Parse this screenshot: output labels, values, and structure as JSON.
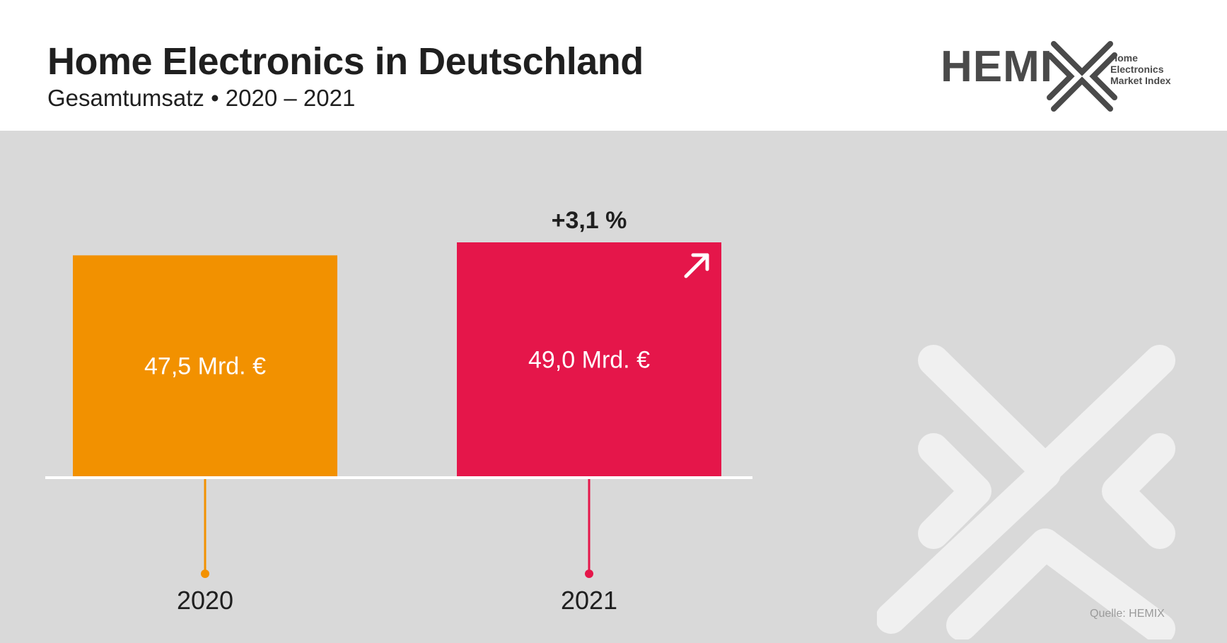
{
  "header": {
    "title": "Home Electronics in Deutschland",
    "subtitle": "Gesamtumsatz • 2020 – 2021"
  },
  "logo": {
    "wordmark": "HEMIX",
    "line1": "Home",
    "line2": "Electronics",
    "line3": "Market Index"
  },
  "colors": {
    "bar_2020": "#f29100",
    "bar_2021": "#e5164a",
    "background": "#d9d9d9",
    "axis": "#ffffff"
  },
  "chart_data": {
    "type": "bar",
    "title": "Home Electronics in Deutschland",
    "subtitle": "Gesamtumsatz • 2020 – 2021",
    "categories": [
      "2020",
      "2021"
    ],
    "values": [
      47.5,
      49.0
    ],
    "value_labels": [
      "47,5 Mrd. €",
      "49,0 Mrd. €"
    ],
    "unit": "Mrd. €",
    "change_label": "+3,1 %",
    "change_direction": "up-right-arrow-icon",
    "xlabel": "",
    "ylabel": "",
    "ylim": [
      0,
      49.0
    ],
    "grid": false
  },
  "footer": {
    "source": "Quelle: HEMIX"
  }
}
